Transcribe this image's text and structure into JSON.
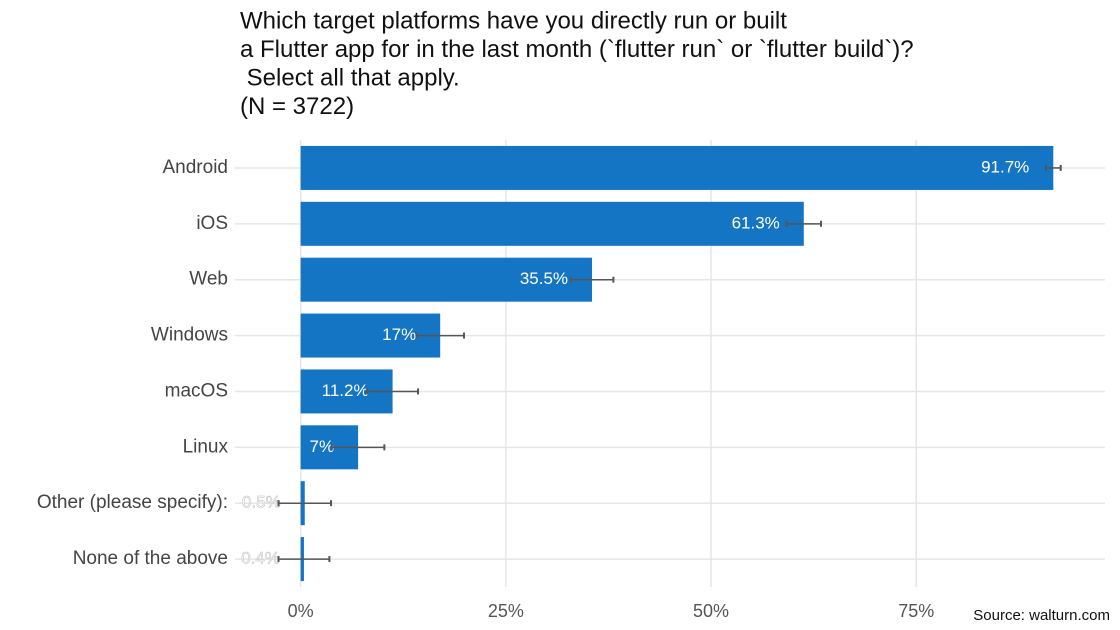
{
  "chart_data": {
    "type": "hbar",
    "title": [
      "Which target platforms have you directly run or built",
      "a Flutter app for in the last month (`flutter run` or `flutter build`)?",
      " Select all that apply.",
      "(N = 3722)"
    ],
    "categories": [
      "Android",
      "iOS",
      "Web",
      "Windows",
      "macOS",
      "Linux",
      "Other (please specify):",
      "None of the above"
    ],
    "values": [
      91.7,
      61.3,
      35.5,
      17,
      11.2,
      7,
      0.5,
      0.4
    ],
    "value_labels": [
      "91.7%",
      "61.3%",
      "35.5%",
      "17%",
      "11.2%",
      "7%",
      "0.5%",
      "0.4%"
    ],
    "errors": [
      0.9,
      2.1,
      2.6,
      2.9,
      3.1,
      3.2,
      3.2,
      3.1
    ],
    "color": "#1475c4",
    "xlim": [
      -8,
      98
    ],
    "xticks": [
      {
        "value": 0,
        "label": "0%"
      },
      {
        "value": 25,
        "label": "25%"
      },
      {
        "value": 50,
        "label": "50%"
      },
      {
        "value": 75,
        "label": "75%"
      }
    ],
    "grid": true,
    "source": "Source: walturn.com"
  }
}
